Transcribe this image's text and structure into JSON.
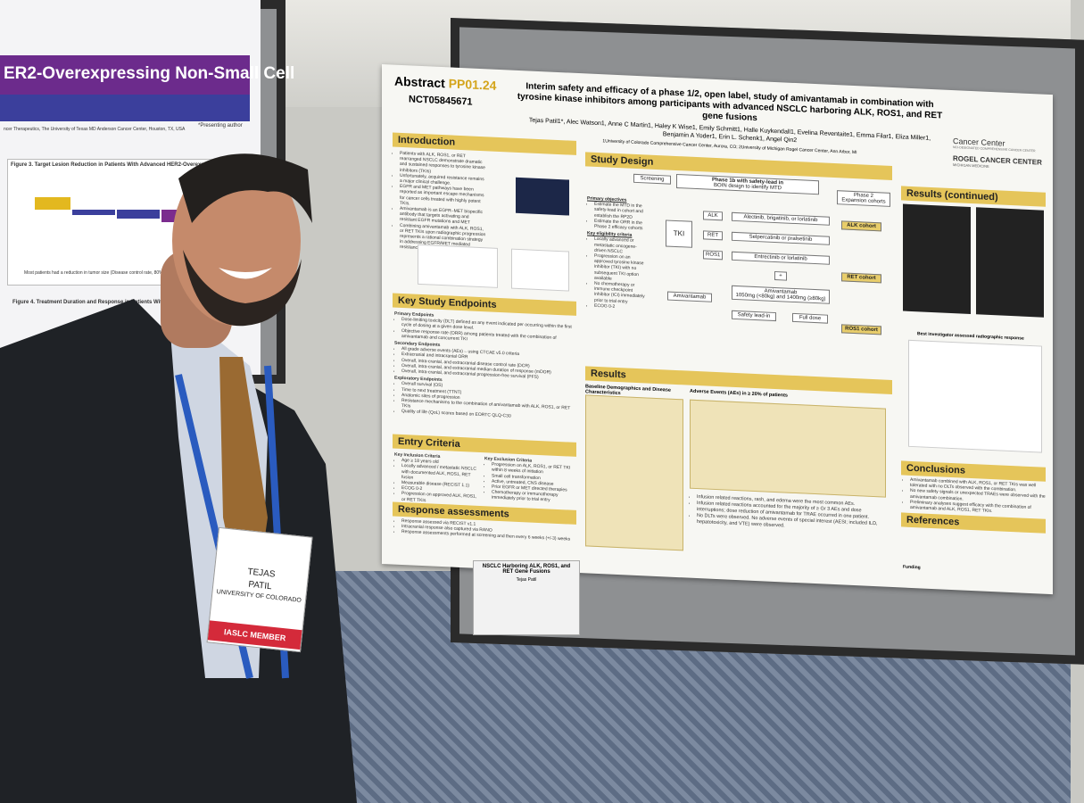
{
  "left_poster": {
    "title": "ER2-Overexpressing Non-Small Cell",
    "affiliation": "ncer Therapeutics, The University of Texas MD Anderson Cancer Center, Houston, TX, USA",
    "note": "*Presenting author",
    "figure_3": "Figure 3. Target Lesion Reduction in Patients With Advanced HER2-Overexpressing NSCLC Treated",
    "figure_note": "Most patients had a reduction in tumor size (Disease control rate, 80% [95% CI, 28–100])",
    "figure_4": "Figure 4. Treatment Duration and Response in Patients With Advanced"
  },
  "poster": {
    "abstract_label": "Abstract",
    "abstract_id": "PP01.24",
    "trial_id": "NCT05845671",
    "title": "Interim safety and efficacy of a phase 1/2, open label, study of amivantamab in combination with tyrosine kinase inhibitors among participants with advanced NSCLC harboring ALK, ROS1, and RET gene fusions",
    "authors": "Tejas Patil1*, Alec Watson1, Anne C Martin1, Haley K Wise1, Emily Schmitt1, Halle Kuykendall1, Evelina Reventaite1, Emma Filar1, Eliza Miller1, Benjamin A Yoder1, Erin L. Schenk1, Angel Qin2",
    "affiliations": "1University of Colorado Comprehensive Cancer Center, Aurora, CO; 2University of Michigan Rogel Cancer Center, Ann Arbor, MI",
    "logo_1": "Cancer Center",
    "logo_1_sub": "NCI-DESIGNATED COMPREHENSIVE CANCER CENTER",
    "logo_2": "ROGEL CANCER CENTER",
    "logo_2_sub": "MICHIGAN MEDICINE",
    "introduction": {
      "header": "Introduction",
      "bullets": [
        "Patients with ALK, ROS1, or RET rearranged NSCLC demonstrate dramatic and sustained responses to tyrosine kinase inhibitors (TKIs)",
        "Unfortunately, acquired resistance remains a major clinical challenge.",
        "EGFR and MET pathways have been reported as important escape mechanisms for cancer cells treated with highly potent TKIs.",
        "Amivantamab is an EGFR–MET bispecific antibody that targets activating and resistant EGFR mutations and MET",
        "Combining amivantamab with ALK, ROS1, or RET TKIs upon radiographic progression represents a rational combination strategy in addressing EGFR/MET mediated resistance"
      ]
    },
    "endpoints": {
      "header": "Key Study Endpoints",
      "groups": [
        {
          "label": "Primary Endpoints",
          "items": [
            "Dose-limiting toxicity (DLT) defined as any event indicated per occurring within the first cycle of dosing at a given dose level.",
            "Objective response rate (ORR) among patients treated with the combination of amivantamab and concurrent TKI"
          ]
        },
        {
          "label": "Secondary Endpoints",
          "items": [
            "All grade adverse events (AEs) – using CTCAE v5.0 criteria",
            "Extracranial and intracranial ORR",
            "Overall, intra-cranial, and extracranial disease control rate (DCR)",
            "Overall, intra-cranial, and extracranial median duration of response (mDOR)",
            "Overall, intra-cranial, and extracranial progression-free survival (PFS)"
          ]
        },
        {
          "label": "Exploratory Endpoints",
          "items": [
            "Overall survival (OS)",
            "Time to next treatment (TTNT)",
            "Anatomic sites of progression",
            "Resistance mechanisms to the combination of amivantamab with ALK, ROS1, or RET TKIs",
            "Quality of life (QoL) scores based on EORTC QLQ-C30"
          ]
        }
      ]
    },
    "entry": {
      "header": "Entry Criteria",
      "inclusion_label": "Key Inclusion Criteria",
      "inclusion": [
        "Age ≥ 18 years old",
        "Locally advanced / metastatic NSCLC with documented ALK, ROS1, RET fusion",
        "Measurable disease (RECIST 1.1)",
        "ECOG 0-2",
        "Progression on approved ALK, ROS1, or RET TKIs"
      ],
      "exclusion_label": "Key Exclusion Criteria",
      "exclusion": [
        "Progression on ALK, ROS1, or RET TKI within 8 weeks of initiation",
        "Small cell transformation",
        "Active, untreated, CNS disease",
        "Prior EGFR or MET directed therapies",
        "Chemotherapy or immunotherapy immediately prior to trial entry"
      ]
    },
    "response": {
      "header": "Response assessments",
      "bullets": [
        "Response assessed via RECIST v1.1",
        "Intracranial response also captured via RANO",
        "Response assessments performed at screening and then every 6 weeks (+/-3) weeks"
      ]
    },
    "design": {
      "header": "Study Design",
      "screening": "Screening",
      "phase1": "Phase 1b with safety-lead in",
      "phase1_sub": "BOIN design to identify MTD",
      "phase2": "Phase 2",
      "phase2_sub": "Expansion cohorts",
      "objectives_label": "Primary objectives",
      "objectives": [
        "Estimate the MTD in the safety-lead in cohort and establish the RP2D",
        "Estimate the ORR in the Phase 2 efficacy cohorts"
      ],
      "eligibility_label": "Key eligibility criteria",
      "eligibility": [
        "Locally advanced or metastatic oncogene-driven NSCLC",
        "Progression on an approved tyrosine kinase inhibitor (TKI) with no subsequent TKI option available",
        "No chemotherapy or immune checkpoint inhibitor (ICI) immediately prior to trial entry",
        "ECOG 0-2"
      ],
      "tki": "TKI",
      "amivantamab": "Amivantamab",
      "alk": "ALK",
      "ret": "RET",
      "ros1": "ROS1",
      "alk_drugs": "Alectinib, brigatinib, or lorlatinib",
      "ret_drugs": "Selpercatinib or pralsetinib",
      "ros1_drugs": "Entrectinib or lorlatinib",
      "plus": "+",
      "ami_dose": "Amivantamab",
      "ami_dose_sub": "1050mg (<80kg) and 1400mg (≥80kg)",
      "safety": "Safety lead-in",
      "full": "Full dose",
      "alk_cohort": "ALK cohort",
      "ret_cohort": "RET cohort",
      "ros1_cohort": "ROS1 cohort"
    },
    "results": {
      "header": "Results",
      "table_1": "Baseline Demographics and Disease Characteristics",
      "table_2": "Adverse Events (AEs) in ≥ 20% of patients",
      "bullets": [
        "Infusion related reactions, rash, and edema were the most common AEs.",
        "Infusion related reactions accounted for the majority of ≥ Gr 3 AEs and dose interruptions; dose reduction of amivantamab for TRAE occurred in one patient.",
        "No DLTs were observed. No adverse events of special interest (AESI; included ILD, hepatotoxicity, and VTE) were observed."
      ]
    },
    "results_cont": {
      "header": "Results (continued)",
      "chart_label": "Best investigator assessed radiographic response"
    },
    "conclusions": {
      "header": "Conclusions",
      "bullets": [
        "Amivantamab combined with ALK, ROS1, or RET TKIs was well tolerated with no DLTs observed with the combination.",
        "No new safety signals or unexpected TRAEs were observed with the amivantamab combination.",
        "Preliminary analyses suggest efficacy with the combination of amivantamab and ALK, ROS1, RET TKIs."
      ]
    },
    "references": {
      "header": "References"
    },
    "funding": "Funding"
  },
  "handout": {
    "title": "NSCLC Harboring ALK, ROS1, and RET Gene Fusions",
    "name": "Tejas Patil"
  },
  "badge": {
    "first": "TEJAS",
    "last": "PATIL",
    "org": "UNIVERSITY OF COLORADO",
    "member": "IASLC MEMBER"
  }
}
